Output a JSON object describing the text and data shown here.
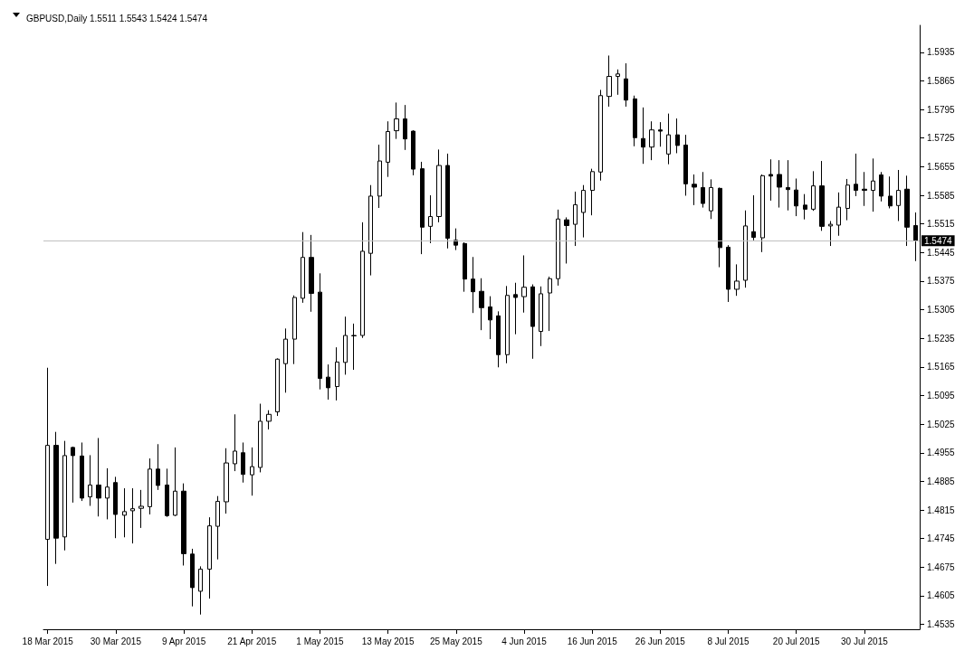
{
  "chart_data": {
    "type": "candlestick",
    "title": "GBPUSD,Daily 1.5511 1.5543 1.5424 1.5474",
    "categories": [
      "18 Mar 2015",
      null,
      null,
      null,
      null,
      null,
      null,
      null,
      "30 Mar 2015",
      null,
      null,
      null,
      null,
      null,
      null,
      null,
      "9 Apr 2015",
      null,
      null,
      null,
      null,
      null,
      null,
      null,
      "21 Apr 2015",
      null,
      null,
      null,
      null,
      null,
      null,
      null,
      "1 May 2015",
      null,
      null,
      null,
      null,
      null,
      null,
      null,
      "13 May 2015",
      null,
      null,
      null,
      null,
      null,
      null,
      null,
      "25 May 2015",
      null,
      null,
      null,
      null,
      null,
      null,
      null,
      "4 Jun 2015",
      null,
      null,
      null,
      null,
      null,
      null,
      null,
      "16 Jun 2015",
      null,
      null,
      null,
      null,
      null,
      null,
      null,
      "26 Jun 2015",
      null,
      null,
      null,
      null,
      null,
      null,
      null,
      "8 Jul 2015",
      null,
      null,
      null,
      null,
      null,
      null,
      null,
      "20 Jul 2015",
      null,
      null,
      null,
      null,
      null,
      null,
      null,
      "30 Jul 2015",
      null,
      null,
      null,
      null,
      null,
      null
    ],
    "ohlc": [
      [
        1.4743,
        1.5163,
        1.4629,
        1.4973
      ],
      [
        1.4973,
        1.5006,
        1.4683,
        1.4746
      ],
      [
        1.4749,
        1.4984,
        1.4716,
        1.4948
      ],
      [
        1.4968,
        1.497,
        1.4833,
        1.4948
      ],
      [
        1.4947,
        1.498,
        1.4837,
        1.4844
      ],
      [
        1.4847,
        1.4949,
        1.4825,
        1.4876
      ],
      [
        1.4876,
        1.4991,
        1.4799,
        1.4844
      ],
      [
        1.4844,
        1.4917,
        1.4792,
        1.4871
      ],
      [
        1.4882,
        1.4896,
        1.4746,
        1.4804
      ],
      [
        1.4802,
        1.4868,
        1.4748,
        1.4811
      ],
      [
        1.4813,
        1.4868,
        1.4733,
        1.4818
      ],
      [
        1.4819,
        1.4864,
        1.4771,
        1.4824
      ],
      [
        1.4823,
        1.4941,
        1.4804,
        1.4915
      ],
      [
        1.4915,
        1.4976,
        1.4864,
        1.4875
      ],
      [
        1.4876,
        1.4916,
        1.4798,
        1.4801
      ],
      [
        1.4802,
        1.4968,
        1.48,
        1.4861
      ],
      [
        1.4861,
        1.488,
        1.4679,
        1.4708
      ],
      [
        1.4707,
        1.472,
        1.4579,
        1.4625
      ],
      [
        1.4616,
        1.4677,
        1.4559,
        1.467
      ],
      [
        1.467,
        1.4797,
        1.4598,
        1.4776
      ],
      [
        1.4775,
        1.4849,
        1.4694,
        1.4836
      ],
      [
        1.4835,
        1.4966,
        1.4806,
        1.493
      ],
      [
        1.4928,
        1.5049,
        1.491,
        1.4959
      ],
      [
        1.4955,
        1.498,
        1.4882,
        1.4902
      ],
      [
        1.4901,
        1.4968,
        1.485,
        1.4921
      ],
      [
        1.4919,
        1.5075,
        1.4907,
        1.5032
      ],
      [
        1.5032,
        1.5059,
        1.5012,
        1.5049
      ],
      [
        1.5055,
        1.5186,
        1.5045,
        1.5184
      ],
      [
        1.5173,
        1.5259,
        1.5102,
        1.5233
      ],
      [
        1.5233,
        1.534,
        1.5172,
        1.5335
      ],
      [
        1.5333,
        1.5495,
        1.5322,
        1.5433
      ],
      [
        1.5433,
        1.5488,
        1.53,
        1.5345
      ],
      [
        1.5348,
        1.5394,
        1.511,
        1.5137
      ],
      [
        1.514,
        1.5171,
        1.5085,
        1.5114
      ],
      [
        1.5117,
        1.5213,
        1.5083,
        1.5177
      ],
      [
        1.5176,
        1.5288,
        1.5146,
        1.5242
      ],
      [
        1.5241,
        1.5271,
        1.5158,
        1.5242
      ],
      [
        1.5242,
        1.5519,
        1.5236,
        1.5448
      ],
      [
        1.5443,
        1.561,
        1.5389,
        1.5583
      ],
      [
        1.5583,
        1.5709,
        1.5554,
        1.5669
      ],
      [
        1.5666,
        1.5766,
        1.563,
        1.5741
      ],
      [
        1.5743,
        1.5812,
        1.5723,
        1.5772
      ],
      [
        1.5772,
        1.5806,
        1.5696,
        1.5723
      ],
      [
        1.5742,
        1.5744,
        1.5634,
        1.5649
      ],
      [
        1.565,
        1.5667,
        1.5441,
        1.5507
      ],
      [
        1.5509,
        1.5585,
        1.5468,
        1.5533
      ],
      [
        1.5533,
        1.5697,
        1.5519,
        1.5658
      ],
      [
        1.5658,
        1.5687,
        1.5455,
        1.548
      ],
      [
        1.5475,
        1.5504,
        1.5451,
        1.5463
      ],
      [
        1.5467,
        1.547,
        1.5349,
        1.538
      ],
      [
        1.538,
        1.5434,
        1.5297,
        1.5349
      ],
      [
        1.535,
        1.5382,
        1.5255,
        1.531
      ],
      [
        1.5312,
        1.5338,
        1.5233,
        1.528
      ],
      [
        1.529,
        1.5301,
        1.5164,
        1.5195
      ],
      [
        1.5195,
        1.5363,
        1.5174,
        1.534
      ],
      [
        1.5342,
        1.5371,
        1.5245,
        1.5335
      ],
      [
        1.5337,
        1.5438,
        1.5298,
        1.536
      ],
      [
        1.5361,
        1.5367,
        1.5185,
        1.5264
      ],
      [
        1.5252,
        1.5362,
        1.5216,
        1.5344
      ],
      [
        1.5346,
        1.5386,
        1.5253,
        1.5381
      ],
      [
        1.5381,
        1.555,
        1.5364,
        1.5527
      ],
      [
        1.5525,
        1.5531,
        1.5418,
        1.5511
      ],
      [
        1.5514,
        1.5594,
        1.5461,
        1.5562
      ],
      [
        1.5543,
        1.561,
        1.5482,
        1.5597
      ],
      [
        1.5597,
        1.565,
        1.5536,
        1.5643
      ],
      [
        1.5642,
        1.5843,
        1.5621,
        1.5829
      ],
      [
        1.5827,
        1.5927,
        1.5802,
        1.5876
      ],
      [
        1.5876,
        1.5893,
        1.5831,
        1.5882
      ],
      [
        1.587,
        1.5908,
        1.5802,
        1.5818
      ],
      [
        1.5821,
        1.5829,
        1.5705,
        1.5726
      ],
      [
        1.5724,
        1.58,
        1.5662,
        1.5703
      ],
      [
        1.5703,
        1.5766,
        1.5671,
        1.5745
      ],
      [
        1.5745,
        1.5764,
        1.5704,
        1.5742
      ],
      [
        1.5686,
        1.5785,
        1.5661,
        1.5733
      ],
      [
        1.5733,
        1.5773,
        1.5688,
        1.5707
      ],
      [
        1.5708,
        1.5733,
        1.5584,
        1.5613
      ],
      [
        1.5612,
        1.5636,
        1.5561,
        1.5605
      ],
      [
        1.5604,
        1.5642,
        1.5555,
        1.5565
      ],
      [
        1.5547,
        1.5624,
        1.5527,
        1.5604
      ],
      [
        1.5602,
        1.5604,
        1.5409,
        1.5457
      ],
      [
        1.5458,
        1.5463,
        1.5324,
        1.5355
      ],
      [
        1.5355,
        1.5416,
        1.5339,
        1.5375
      ],
      [
        1.5377,
        1.5548,
        1.5359,
        1.551
      ],
      [
        1.5496,
        1.5585,
        1.5475,
        1.5482
      ],
      [
        1.5481,
        1.5636,
        1.5446,
        1.5633
      ],
      [
        1.5636,
        1.5673,
        1.5572,
        1.5632
      ],
      [
        1.5636,
        1.5671,
        1.5555,
        1.5605
      ],
      [
        1.5604,
        1.5671,
        1.5548,
        1.5599
      ],
      [
        1.5598,
        1.5626,
        1.5534,
        1.5559
      ],
      [
        1.5561,
        1.5588,
        1.5526,
        1.5551
      ],
      [
        1.5551,
        1.5644,
        1.5547,
        1.5608
      ],
      [
        1.5608,
        1.5669,
        1.5498,
        1.5509
      ],
      [
        1.551,
        1.5522,
        1.5461,
        1.5514
      ],
      [
        1.5512,
        1.5592,
        1.5486,
        1.5556
      ],
      [
        1.5553,
        1.5625,
        1.5524,
        1.561
      ],
      [
        1.5612,
        1.5687,
        1.5583,
        1.5597
      ],
      [
        1.56,
        1.5642,
        1.5559,
        1.5597
      ],
      [
        1.5597,
        1.5675,
        1.5545,
        1.562
      ],
      [
        1.5635,
        1.5642,
        1.557,
        1.5583
      ],
      [
        1.5583,
        1.5631,
        1.5553,
        1.5559
      ],
      [
        1.556,
        1.5647,
        1.5522,
        1.5597
      ],
      [
        1.56,
        1.5633,
        1.5461,
        1.5507
      ],
      [
        1.5511,
        1.5543,
        1.5424,
        1.5474
      ]
    ],
    "ylim": [
      1.4523,
      1.6001
    ],
    "yticks": [
      1.4535,
      1.4605,
      1.4675,
      1.4745,
      1.4815,
      1.4885,
      1.4955,
      1.5025,
      1.5095,
      1.5165,
      1.5235,
      1.5305,
      1.5375,
      1.5445,
      1.5515,
      1.5585,
      1.5655,
      1.5725,
      1.5795,
      1.5865,
      1.5935
    ],
    "ref_lines": [
      {
        "axis": "y",
        "value": 1.5474,
        "label": "1.5474",
        "color": "#c0c0c0"
      }
    ],
    "grid": false
  }
}
